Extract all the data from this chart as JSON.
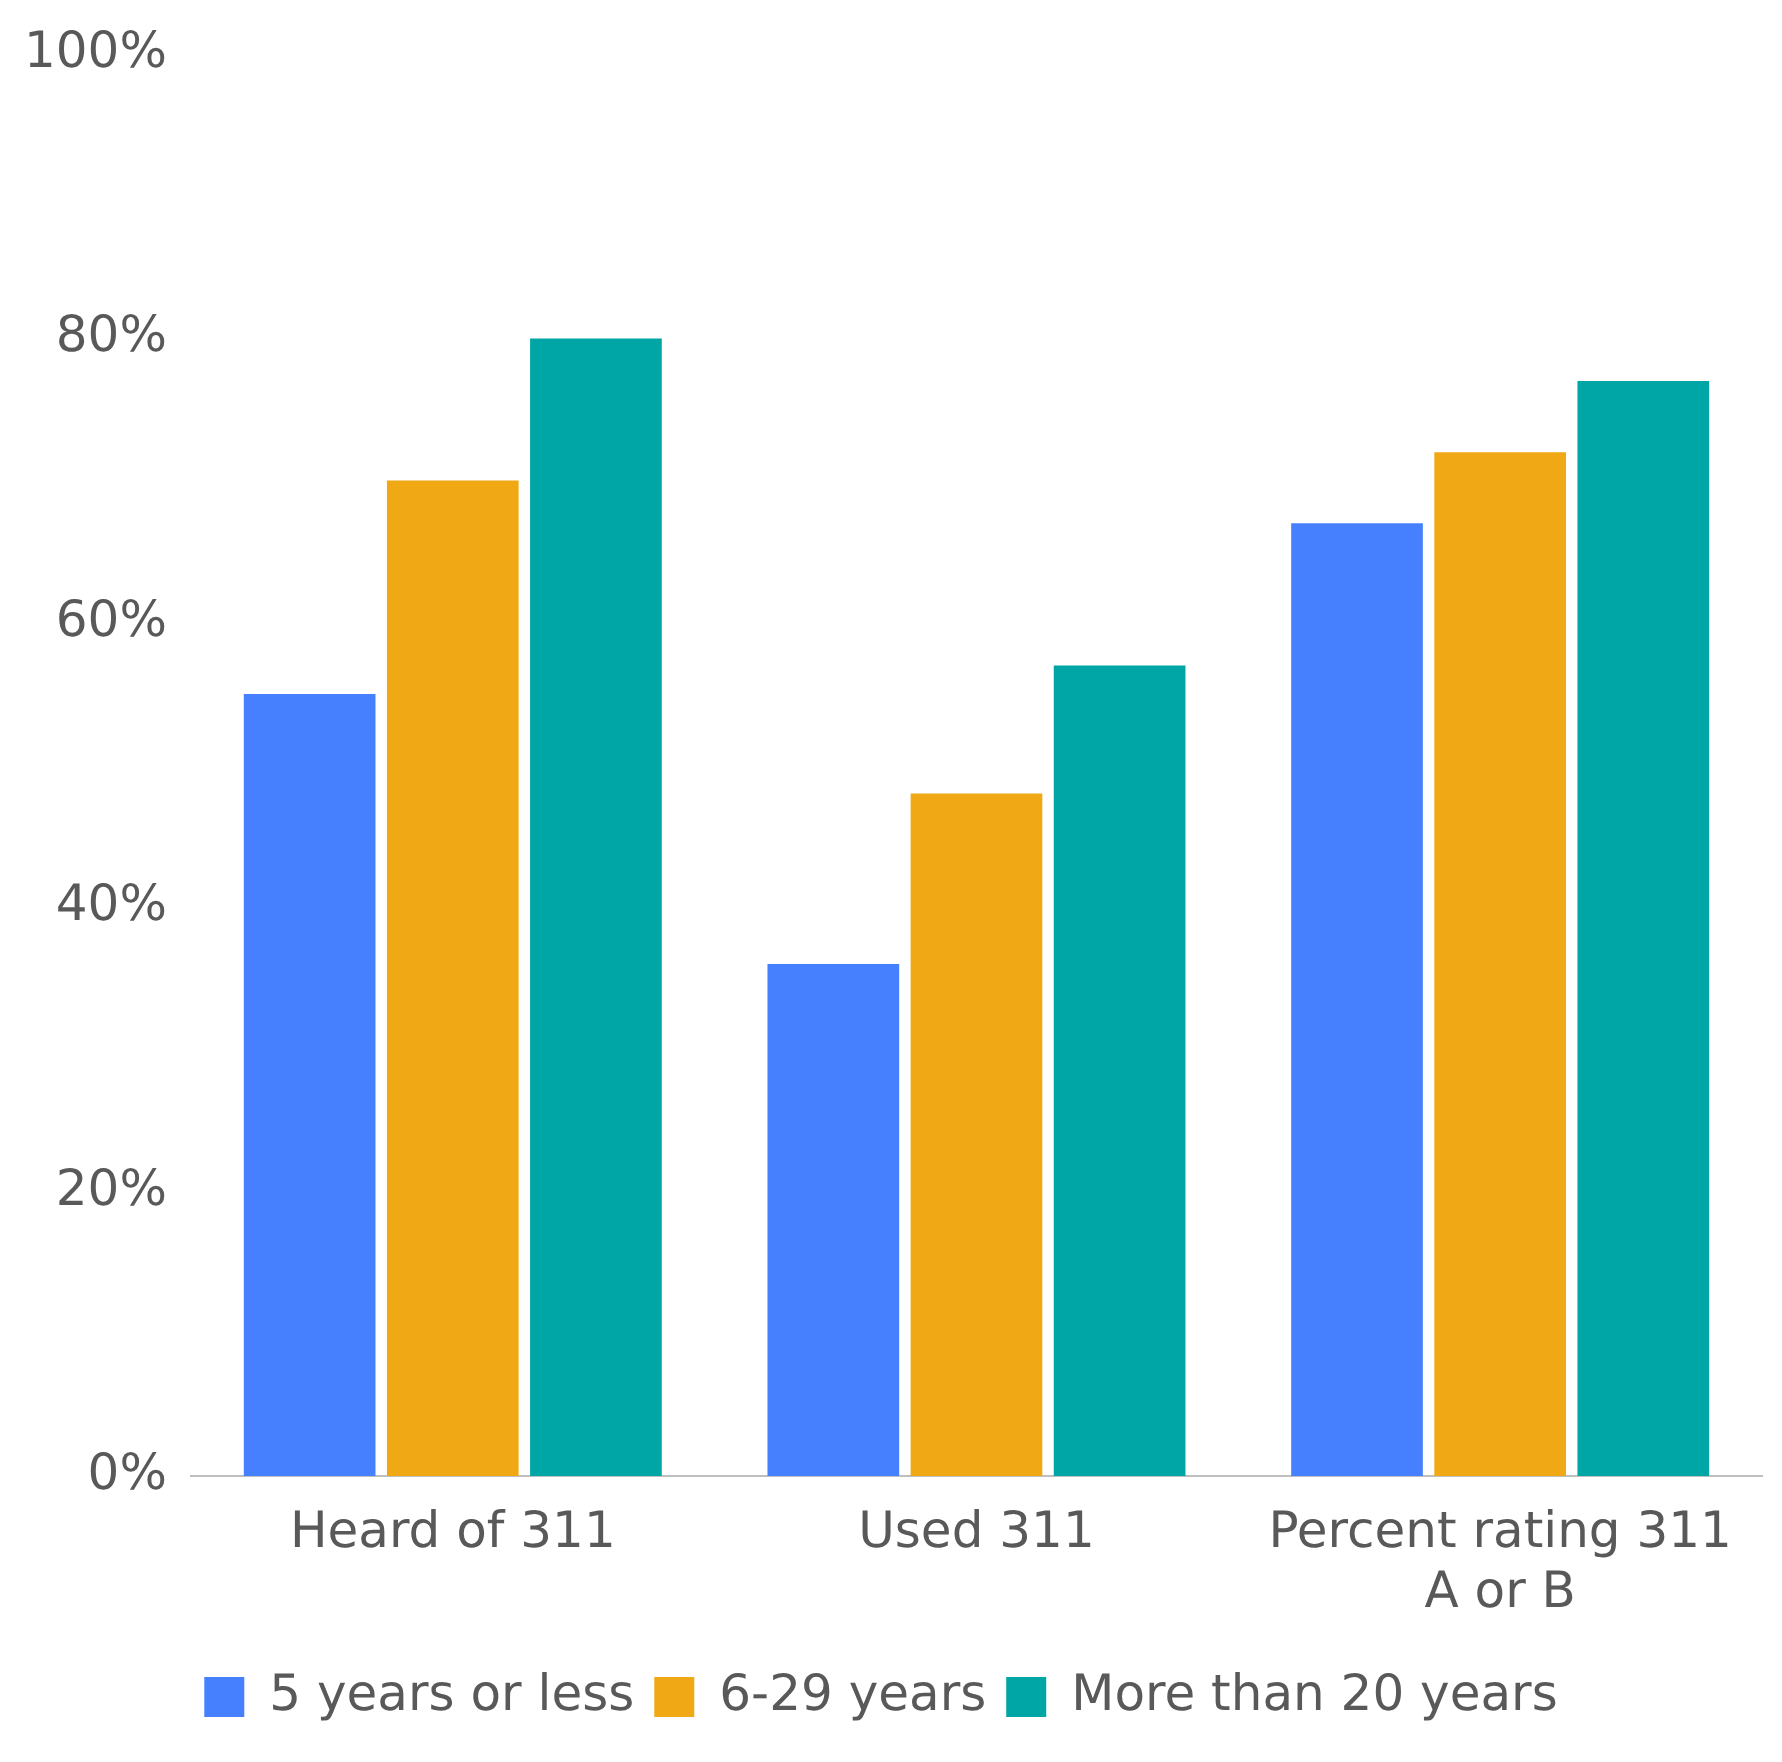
{
  "chart_data": {
    "type": "bar",
    "categories": [
      "Heard of 311",
      "Used 311",
      "Percent rating 311 A or B"
    ],
    "series": [
      {
        "name": "5 years or less",
        "color": "#4680ff",
        "values": [
          55,
          36,
          67
        ]
      },
      {
        "name": "6-29 years",
        "color": "#f0a814",
        "values": [
          70,
          48,
          72
        ]
      },
      {
        "name": "More than 20 years",
        "color": "#00a6a6",
        "values": [
          80,
          57,
          77
        ]
      }
    ],
    "ylim": [
      0,
      100
    ],
    "yticks": [
      {
        "value": 0,
        "label": "0%"
      },
      {
        "value": 20,
        "label": "20%"
      },
      {
        "value": 40,
        "label": "40%"
      },
      {
        "value": 60,
        "label": "60%"
      },
      {
        "value": 80,
        "label": "80%"
      },
      {
        "value": 100,
        "label": "100%"
      }
    ],
    "grid": false,
    "legend": "bottom"
  }
}
